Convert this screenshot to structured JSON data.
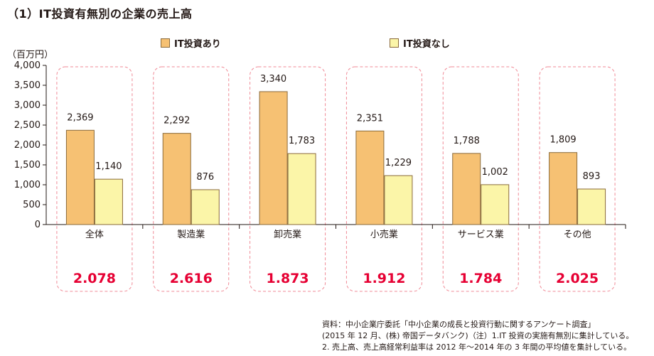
{
  "title": "（1）IT投資有無別の企業の売上高",
  "unit_label": "（百万円）",
  "colors": {
    "with_it": "#F6C173",
    "without_it": "#FBF5A8",
    "bar_stroke": "#8a6a3a",
    "highlight": "#E60033",
    "dashed_box": "#F08A96"
  },
  "chart_data": {
    "type": "bar",
    "title": "（1）IT投資有無別の企業の売上高",
    "ylabel": "（百万円）",
    "xlabel": "",
    "ylim": [
      0,
      4000
    ],
    "yticks": [
      0,
      500,
      1000,
      1500,
      2000,
      2500,
      3000,
      3500,
      4000
    ],
    "ytick_labels": [
      "0",
      "500",
      "1,000",
      "1,500",
      "2,000",
      "2,500",
      "3,000",
      "3,500",
      "4,000"
    ],
    "categories": [
      "全体",
      "製造業",
      "卸売業",
      "小売業",
      "サービス業",
      "その他"
    ],
    "series": [
      {
        "name": "IT投資あり",
        "values": [
          2369,
          2292,
          3340,
          2351,
          1788,
          1809
        ],
        "labels": [
          "2,369",
          "2,292",
          "3,340",
          "2,351",
          "1,788",
          "1,809"
        ]
      },
      {
        "name": "IT投資なし",
        "values": [
          1140,
          876,
          1783,
          1229,
          1002,
          893
        ],
        "labels": [
          "1,140",
          "876",
          "1,783",
          "1,229",
          "1,002",
          "893"
        ]
      }
    ],
    "ratios": [
      "2.078",
      "2.616",
      "1.873",
      "1.912",
      "1.784",
      "2.025"
    ],
    "grid": false,
    "legend": "top"
  },
  "source": {
    "line1": "資料：中小企業庁委託「中小企業の成長と投資行動に関するアンケート調査」",
    "line2": "(2015 年 12 月、(株) 帝国データバンク)（注）1.IT 投資の実施有無別に集計している。",
    "line3": "2. 売上高、売上高経常利益率は 2012 年～2014 年の 3 年間の平均値を集計している。"
  }
}
